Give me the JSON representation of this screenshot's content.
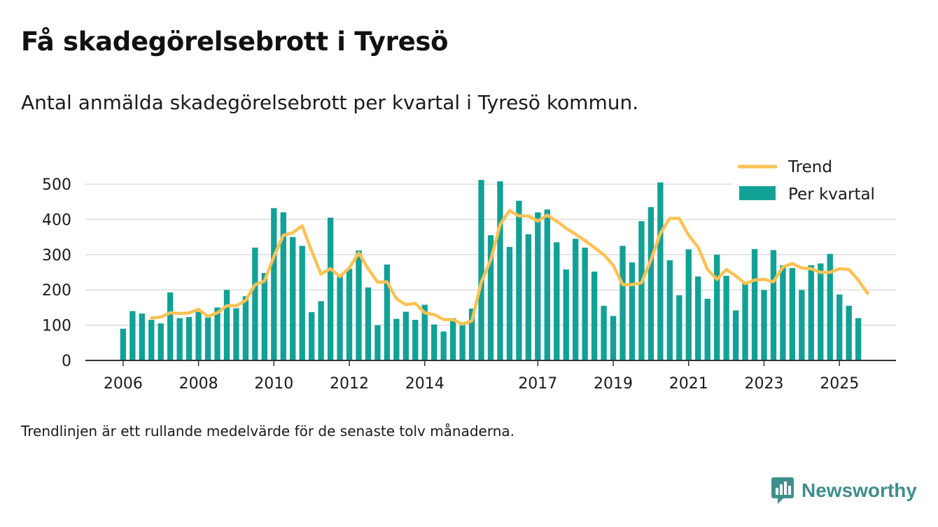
{
  "title": "Få skadegörelsebrott i Tyresö",
  "subtitle": "Antal anmälda skadegörelsebrott per kvartal i Tyresö kommun.",
  "note": "Trendlinjen är ett rullande medelvärde för de senaste tolv månaderna.",
  "brand": {
    "name": "Newsworthy",
    "icon": "newsworthy-logo-icon"
  },
  "colors": {
    "bars": "#12a196",
    "trend": "#fcc254",
    "grid": "#dddddd",
    "axis": "#333333"
  },
  "chart_data": {
    "type": "bar",
    "title": "Få skadegörelsebrott i Tyresö",
    "xlabel": "",
    "ylabel": "",
    "ylim": [
      0,
      530
    ],
    "yticks": [
      0,
      100,
      200,
      300,
      400,
      500
    ],
    "x_start": 2006.0,
    "x_end": 2025.5,
    "xlim": [
      2005.0,
      2026.5
    ],
    "xticks": [
      {
        "label": "2006",
        "x": 2006
      },
      {
        "label": "2008",
        "x": 2008
      },
      {
        "label": "2010",
        "x": 2010
      },
      {
        "label": "2012",
        "x": 2012
      },
      {
        "label": "2014",
        "x": 2014
      },
      {
        "label": "2017",
        "x": 2017
      },
      {
        "label": "2019",
        "x": 2019
      },
      {
        "label": "2021",
        "x": 2021
      },
      {
        "label": "2023",
        "x": 2023
      },
      {
        "label": "2025",
        "x": 2025
      }
    ],
    "legend": {
      "position": "top-right",
      "entries": [
        "Trend",
        "Per kvartal"
      ]
    },
    "series": [
      {
        "name": "Per kvartal",
        "type": "bar",
        "values": [
          90,
          140,
          133,
          115,
          105,
          193,
          120,
          123,
          138,
          122,
          150,
          200,
          148,
          182,
          320,
          248,
          432,
          420,
          350,
          325,
          137,
          168,
          405,
          240,
          260,
          312,
          207,
          100,
          272,
          118,
          138,
          115,
          158,
          102,
          82,
          120,
          100,
          147,
          512,
          355,
          508,
          322,
          453,
          358,
          420,
          428,
          335,
          258,
          345,
          320,
          252,
          155,
          126,
          325,
          278,
          395,
          435,
          505,
          284,
          185,
          315,
          238,
          175,
          300,
          240,
          142,
          222,
          316,
          200,
          313,
          270,
          262,
          200,
          270,
          275,
          302,
          187,
          155,
          120
        ],
        "color": "#12a196"
      },
      {
        "name": "Trend",
        "type": "line",
        "x_start": 2006.75,
        "values": [
          120,
          123,
          135,
          133,
          135,
          145,
          125,
          135,
          155,
          155,
          170,
          215,
          225,
          295,
          355,
          362,
          382,
          310,
          245,
          260,
          238,
          262,
          305,
          260,
          222,
          223,
          175,
          158,
          162,
          135,
          130,
          116,
          116,
          103,
          112,
          222,
          285,
          385,
          425,
          410,
          410,
          395,
          412,
          395,
          375,
          358,
          340,
          320,
          300,
          270,
          215,
          215,
          220,
          285,
          360,
          403,
          403,
          355,
          322,
          258,
          230,
          258,
          240,
          218,
          228,
          230,
          223,
          265,
          275,
          262,
          260,
          250,
          250,
          260,
          258,
          228,
          190
        ],
        "color": "#fcc254"
      }
    ]
  }
}
